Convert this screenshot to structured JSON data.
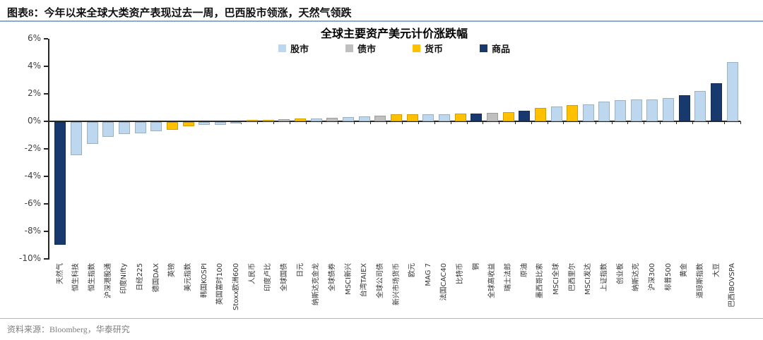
{
  "header": {
    "label": "图表8：",
    "title": "今年以来全球大类资产表现过去一周，巴西股市领涨，天然气领跌"
  },
  "source": {
    "text": "资料来源：Bloomberg，华泰研究"
  },
  "colors": {
    "stock_light_blue": "#BDD7EE",
    "bond_gray": "#BFBFBF",
    "currency_gold": "#FFC000",
    "commodity_navy": "#17396E",
    "header_rule_blue": "#8aabd6",
    "source_rule_blue": "#a7bbd4",
    "axis": "#262626"
  },
  "chart_data": {
    "type": "bar",
    "title": "全球主要资产美元计价涨跌幅",
    "xlabel": "",
    "ylabel": "",
    "ylim": [
      -10,
      6
    ],
    "ytick_step": 2,
    "ytick_suffix": "%",
    "grid": false,
    "legend_position": "top-center",
    "legend": [
      {
        "label": "股市",
        "color": "#BDD7EE"
      },
      {
        "label": "债市",
        "color": "#BFBFBF"
      },
      {
        "label": "货币",
        "color": "#FFC000"
      },
      {
        "label": "商品",
        "color": "#17396E"
      }
    ],
    "bars": [
      {
        "label": "天然气",
        "value": -8.9,
        "category": "商品"
      },
      {
        "label": "恒生科技",
        "value": -2.4,
        "category": "股市"
      },
      {
        "label": "恒生指数",
        "value": -1.6,
        "category": "股市"
      },
      {
        "label": "沪深港股通",
        "value": -1.1,
        "category": "股市"
      },
      {
        "label": "印度Nifty",
        "value": -0.85,
        "category": "股市"
      },
      {
        "label": "日经225",
        "value": -0.8,
        "category": "股市"
      },
      {
        "label": "德国DAX",
        "value": -0.65,
        "category": "股市"
      },
      {
        "label": "英镑",
        "value": -0.55,
        "category": "货币"
      },
      {
        "label": "美元指数",
        "value": -0.3,
        "category": "货币"
      },
      {
        "label": "韩国KOSPI",
        "value": -0.2,
        "category": "股市"
      },
      {
        "label": "英国富时100",
        "value": -0.18,
        "category": "股市"
      },
      {
        "label": "Stoxx欧洲600",
        "value": -0.08,
        "category": "股市"
      },
      {
        "label": "人民币",
        "value": 0.1,
        "category": "货币"
      },
      {
        "label": "印度卢比",
        "value": 0.1,
        "category": "货币"
      },
      {
        "label": "全球国债",
        "value": 0.15,
        "category": "债市"
      },
      {
        "label": "日元",
        "value": 0.2,
        "category": "货币"
      },
      {
        "label": "纳斯达克金龙",
        "value": 0.2,
        "category": "股市"
      },
      {
        "label": "全球债券",
        "value": 0.25,
        "category": "债市"
      },
      {
        "label": "MSCI新兴",
        "value": 0.3,
        "category": "股市"
      },
      {
        "label": "台湾TAIEX",
        "value": 0.35,
        "category": "股市"
      },
      {
        "label": "全球公司债",
        "value": 0.4,
        "category": "债市"
      },
      {
        "label": "新兴市场货币",
        "value": 0.5,
        "category": "货币"
      },
      {
        "label": "欧元",
        "value": 0.5,
        "category": "货币"
      },
      {
        "label": "MAG 7",
        "value": 0.5,
        "category": "股市"
      },
      {
        "label": "法国CAC40",
        "value": 0.52,
        "category": "股市"
      },
      {
        "label": "比特币",
        "value": 0.55,
        "category": "货币"
      },
      {
        "label": "铜",
        "value": 0.58,
        "category": "商品"
      },
      {
        "label": "全球高收益",
        "value": 0.6,
        "category": "债市"
      },
      {
        "label": "瑞士法郎",
        "value": 0.65,
        "category": "货币"
      },
      {
        "label": "原油",
        "value": 0.75,
        "category": "商品"
      },
      {
        "label": "墨西哥比索",
        "value": 1.0,
        "category": "货币"
      },
      {
        "label": "MSCI全球",
        "value": 1.1,
        "category": "股市"
      },
      {
        "label": "巴西里尔",
        "value": 1.2,
        "category": "货币"
      },
      {
        "label": "MSCI发达",
        "value": 1.25,
        "category": "股市"
      },
      {
        "label": "上证指数",
        "value": 1.45,
        "category": "股市"
      },
      {
        "label": "创业板",
        "value": 1.55,
        "category": "股市"
      },
      {
        "label": "纳斯达克",
        "value": 1.6,
        "category": "股市"
      },
      {
        "label": "沪深300",
        "value": 1.6,
        "category": "股市"
      },
      {
        "label": "标普500",
        "value": 1.7,
        "category": "股市"
      },
      {
        "label": "黄金",
        "value": 1.9,
        "category": "商品"
      },
      {
        "label": "道琼斯指数",
        "value": 2.2,
        "category": "股市"
      },
      {
        "label": "大豆",
        "value": 2.75,
        "category": "商品"
      },
      {
        "label": "巴西IBOVSPA",
        "value": 4.3,
        "category": "股市"
      }
    ]
  }
}
